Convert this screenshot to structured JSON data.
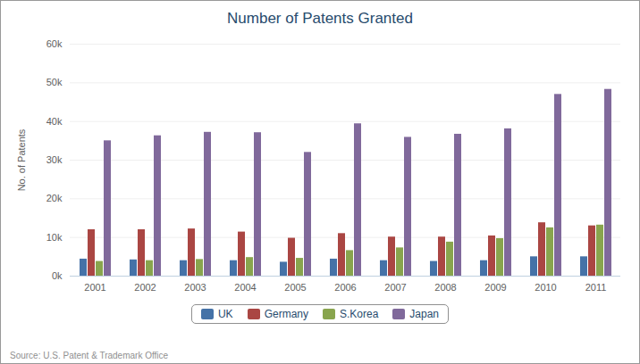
{
  "chart_data": {
    "type": "bar",
    "title": "Number of Patents Granted",
    "y_label": "No. of Patents",
    "caption": "Source: U.S. Patent & Trademark Office",
    "categories": [
      "2001",
      "2002",
      "2003",
      "2004",
      "2005",
      "2006",
      "2007",
      "2008",
      "2009",
      "2010",
      "2011"
    ],
    "series": [
      {
        "name": "UK",
        "color": "#4572a7",
        "values": [
          4400,
          4200,
          4000,
          4000,
          3600,
          4400,
          4000,
          3800,
          4000,
          5000,
          5000
        ]
      },
      {
        "name": "Germany",
        "color": "#aa4643",
        "values": [
          12000,
          12000,
          12200,
          11400,
          9800,
          11000,
          10100,
          10100,
          10400,
          13800,
          13000
        ]
      },
      {
        "name": "S.Korea",
        "color": "#89a54e",
        "values": [
          3800,
          4000,
          4300,
          4800,
          4600,
          6600,
          7300,
          8800,
          9700,
          12500,
          13200
        ]
      },
      {
        "name": "Japan",
        "color": "#80699b",
        "values": [
          35000,
          36300,
          37200,
          37100,
          32000,
          39400,
          35900,
          36700,
          38100,
          47000,
          48300
        ]
      }
    ],
    "ylim": [
      0,
      60000
    ],
    "yticks": [
      {
        "value": 0,
        "label": "0k"
      },
      {
        "value": 10000,
        "label": "10k"
      },
      {
        "value": 20000,
        "label": "20k"
      },
      {
        "value": 30000,
        "label": "30k"
      },
      {
        "value": 40000,
        "label": "40k"
      },
      {
        "value": 50000,
        "label": "50k"
      },
      {
        "value": 60000,
        "label": "60k"
      }
    ],
    "grid": true,
    "legend": "bottom"
  }
}
